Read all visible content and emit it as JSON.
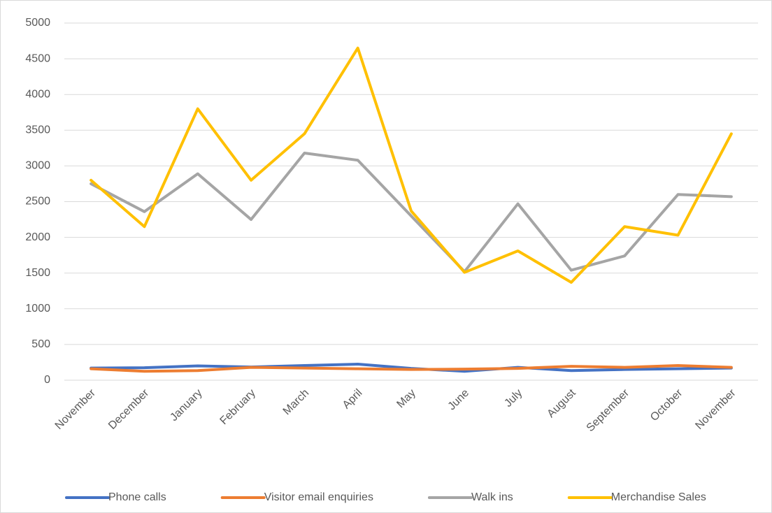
{
  "chart_data": {
    "type": "line",
    "categories": [
      "November",
      "December",
      "January",
      "February",
      "March",
      "April",
      "May",
      "June",
      "July",
      "August",
      "September",
      "October",
      "November"
    ],
    "series": [
      {
        "name": "Phone calls",
        "color": "#4472c4",
        "values": [
          170,
          175,
          200,
          185,
          205,
          225,
          165,
          125,
          180,
          135,
          150,
          160,
          170
        ]
      },
      {
        "name": "Visitor email enquiries",
        "color": "#ed7d31",
        "values": [
          160,
          125,
          135,
          180,
          170,
          160,
          150,
          155,
          165,
          195,
          180,
          205,
          180
        ]
      },
      {
        "name": "Walk ins",
        "color": "#a5a5a5",
        "values": [
          2750,
          2360,
          2890,
          2250,
          3180,
          3080,
          2300,
          1520,
          2470,
          1540,
          1740,
          2600,
          2570
        ]
      },
      {
        "name": "Merchandise Sales",
        "color": "#ffc000",
        "values": [
          2800,
          2150,
          3800,
          2800,
          3450,
          4650,
          2370,
          1510,
          1810,
          1370,
          2150,
          2030,
          3450
        ]
      }
    ],
    "ylim": [
      0,
      5000
    ],
    "yticks": [
      0,
      500,
      1000,
      1500,
      2000,
      2500,
      3000,
      3500,
      4000,
      4500,
      5000
    ],
    "grid": true,
    "legend": "bottom"
  }
}
